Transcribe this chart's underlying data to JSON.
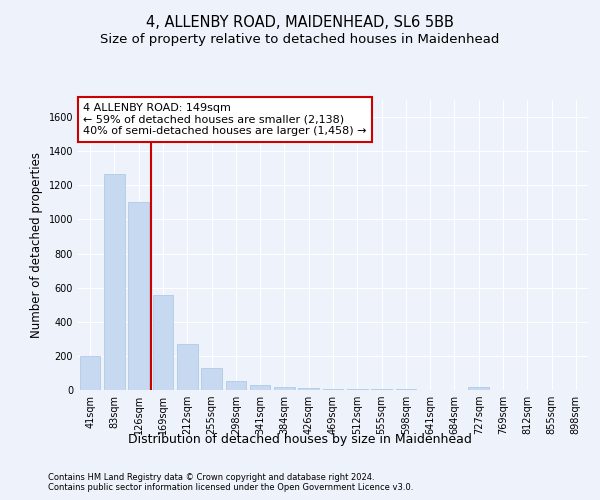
{
  "title": "4, ALLENBY ROAD, MAIDENHEAD, SL6 5BB",
  "subtitle": "Size of property relative to detached houses in Maidenhead",
  "xlabel": "Distribution of detached houses by size in Maidenhead",
  "ylabel": "Number of detached properties",
  "categories": [
    "41sqm",
    "83sqm",
    "126sqm",
    "169sqm",
    "212sqm",
    "255sqm",
    "298sqm",
    "341sqm",
    "384sqm",
    "426sqm",
    "469sqm",
    "512sqm",
    "555sqm",
    "598sqm",
    "641sqm",
    "684sqm",
    "727sqm",
    "769sqm",
    "812sqm",
    "855sqm",
    "898sqm"
  ],
  "values": [
    200,
    1265,
    1100,
    555,
    270,
    130,
    55,
    30,
    20,
    10,
    5,
    5,
    5,
    3,
    0,
    0,
    20,
    0,
    0,
    0,
    0
  ],
  "bar_color": "#c6d9f1",
  "bar_edge_color": "#a8c4e0",
  "ylim": [
    0,
    1700
  ],
  "yticks": [
    0,
    200,
    400,
    600,
    800,
    1000,
    1200,
    1400,
    1600
  ],
  "red_line_x": 2.5,
  "red_line_color": "#cc0000",
  "annotation_text": "4 ALLENBY ROAD: 149sqm\n← 59% of detached houses are smaller (2,138)\n40% of semi-detached houses are larger (1,458) →",
  "annotation_box_color": "#ffffff",
  "annotation_box_edge": "#cc0000",
  "footer1": "Contains HM Land Registry data © Crown copyright and database right 2024.",
  "footer2": "Contains public sector information licensed under the Open Government Licence v3.0.",
  "background_color": "#eef2fa",
  "plot_bg_color": "#eef2fa",
  "grid_color": "#ffffff",
  "title_fontsize": 10.5,
  "subtitle_fontsize": 9.5,
  "tick_fontsize": 7,
  "ylabel_fontsize": 8.5,
  "xlabel_fontsize": 9,
  "annotation_fontsize": 8,
  "footer_fontsize": 6
}
